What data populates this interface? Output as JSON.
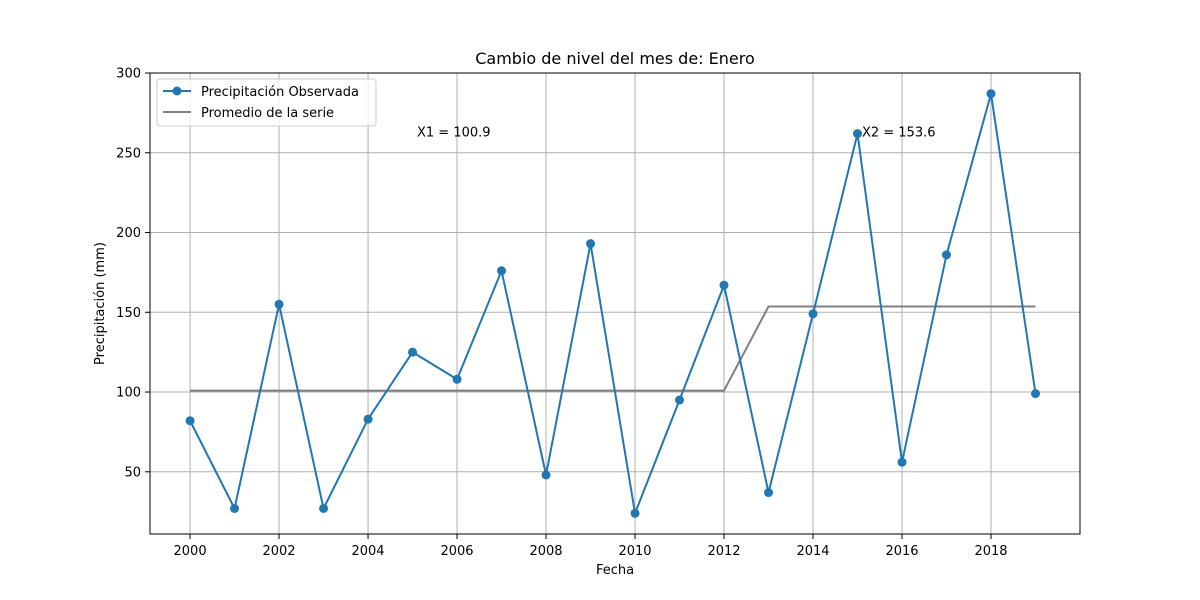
{
  "chart_data": {
    "type": "line",
    "title": "Cambio de nivel del mes de: Enero",
    "xlabel": "Fecha",
    "ylabel": "Precipitación (mm)",
    "xlim": [
      1999.1,
      2020.0
    ],
    "ylim": [
      11,
      300
    ],
    "xticks": [
      2000,
      2002,
      2004,
      2006,
      2008,
      2010,
      2012,
      2014,
      2016,
      2018
    ],
    "yticks": [
      50,
      100,
      150,
      200,
      250,
      300
    ],
    "grid": true,
    "legend_position": "top-left",
    "series": [
      {
        "name": "Precipitación Observada",
        "color": "#1f77b4",
        "marker": "circle",
        "x": [
          2000,
          2001,
          2002,
          2003,
          2004,
          2005,
          2006,
          2007,
          2008,
          2009,
          2010,
          2011,
          2012,
          2013,
          2014,
          2015,
          2016,
          2017,
          2018,
          2019
        ],
        "y": [
          82,
          27,
          155,
          27,
          83,
          125,
          108,
          176,
          48,
          193,
          24,
          95,
          167,
          37,
          149,
          262,
          56,
          186,
          287,
          99
        ]
      },
      {
        "name": "Promedio de la serie",
        "color": "#808080",
        "marker": "none",
        "x": [
          2000,
          2012,
          2013,
          2019
        ],
        "y": [
          100.9,
          100.9,
          153.6,
          153.6
        ]
      }
    ],
    "annotations": [
      {
        "text": "X1 = 100.9",
        "x": 2005.1,
        "y": 260
      },
      {
        "text": "X2 = 153.6",
        "x": 2015.1,
        "y": 260
      }
    ]
  }
}
